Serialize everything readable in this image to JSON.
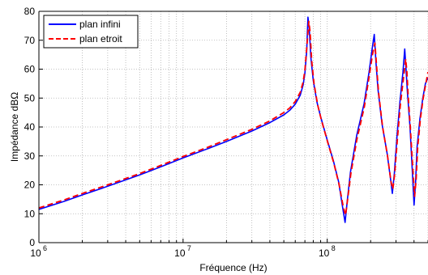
{
  "chart_data": {
    "type": "line",
    "xlabel": "Fréquence (Hz)",
    "ylabel": "Impédance dBΩ",
    "xscale": "log",
    "xlim": [
      1000000,
      500000000
    ],
    "ylim": [
      0,
      80
    ],
    "grid": true,
    "legend_position": "top-left",
    "x_tick_labels": [
      {
        "base": "10",
        "exp": "6",
        "value": 1000000
      },
      {
        "base": "10",
        "exp": "7",
        "value": 10000000
      },
      {
        "base": "10",
        "exp": "8",
        "value": 100000000
      }
    ],
    "y_ticks": [
      0,
      10,
      20,
      30,
      40,
      50,
      60,
      70,
      80
    ],
    "y_tick_labels": [
      "0",
      "10",
      "20",
      "30",
      "40",
      "50",
      "60",
      "70",
      "80"
    ],
    "series": [
      {
        "name": "plan infini",
        "color": "#0000ff",
        "dash": "solid",
        "x": [
          1000000,
          1500000,
          2000000,
          3000000,
          5000000,
          7000000,
          10000000,
          15000000,
          20000000,
          30000000,
          40000000,
          50000000,
          55000000,
          60000000,
          65000000,
          68000000,
          70000000,
          72000000,
          73500000,
          75000000,
          77000000,
          80000000,
          85000000,
          90000000,
          100000000,
          110000000,
          120000000,
          128000000,
          133000000,
          138000000,
          145000000,
          160000000,
          180000000,
          195000000,
          205000000,
          212000000,
          218000000,
          225000000,
          240000000,
          260000000,
          275000000,
          283000000,
          292000000,
          305000000,
          320000000,
          335000000,
          345000000,
          352000000,
          360000000,
          375000000,
          390000000,
          400000000,
          410000000,
          420000000,
          440000000,
          460000000,
          480000000,
          500000000
        ],
        "y": [
          11.5,
          14.3,
          16.5,
          19.5,
          23.4,
          26.2,
          29.3,
          32.6,
          35.0,
          38.6,
          41.5,
          44.2,
          45.8,
          47.9,
          51.0,
          54.5,
          58.5,
          66.0,
          78.0,
          74.0,
          64.0,
          56.0,
          48.5,
          43.5,
          35.5,
          28.5,
          21.0,
          12.0,
          7.0,
          15.0,
          24.5,
          37.0,
          48.0,
          59.0,
          67.0,
          72.0,
          62.0,
          53.0,
          41.0,
          31.0,
          22.0,
          17.0,
          24.0,
          37.0,
          49.0,
          59.0,
          67.0,
          60.0,
          52.0,
          40.0,
          24.0,
          13.0,
          21.0,
          33.0,
          43.0,
          50.0,
          55.0,
          57.0
        ]
      },
      {
        "name": "plan etroit",
        "color": "#ff0000",
        "dash": "dashed",
        "x": [
          1000000,
          1500000,
          2000000,
          3000000,
          5000000,
          7000000,
          10000000,
          15000000,
          20000000,
          30000000,
          40000000,
          50000000,
          55000000,
          60000000,
          65000000,
          68000000,
          70000000,
          72000000,
          74500000,
          76000000,
          78000000,
          81000000,
          86000000,
          91000000,
          101000000,
          111000000,
          121000000,
          129000000,
          134000000,
          139000000,
          146000000,
          161000000,
          181000000,
          196000000,
          206000000,
          214000000,
          220000000,
          227000000,
          242000000,
          262000000,
          277000000,
          285000000,
          294000000,
          307000000,
          322000000,
          338000000,
          350000000,
          357000000,
          364000000,
          378000000,
          393000000,
          404000000,
          414000000,
          424000000,
          443000000,
          463000000,
          483000000,
          500000000
        ],
        "y": [
          12.0,
          14.8,
          17.0,
          20.0,
          23.9,
          26.7,
          29.8,
          33.1,
          35.6,
          39.2,
          42.1,
          45.0,
          46.6,
          48.8,
          52.0,
          55.5,
          59.5,
          67.0,
          76.5,
          73.0,
          63.0,
          55.0,
          47.5,
          42.5,
          34.5,
          27.5,
          20.0,
          12.5,
          9.5,
          15.5,
          24.0,
          36.0,
          47.0,
          58.0,
          65.0,
          69.0,
          61.0,
          52.0,
          40.0,
          30.0,
          21.0,
          18.5,
          24.0,
          36.0,
          48.0,
          57.0,
          63.5,
          59.0,
          51.0,
          39.0,
          25.0,
          16.0,
          22.0,
          33.0,
          43.0,
          50.0,
          55.0,
          59.0
        ]
      }
    ]
  }
}
